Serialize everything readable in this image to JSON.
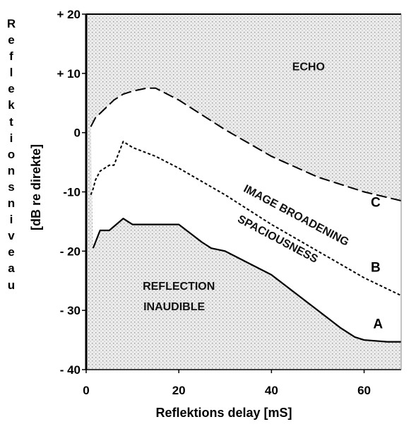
{
  "chart_data": {
    "type": "line",
    "ylabel_outer": "Reflektionsniveau",
    "ylabel_inner": "[dB re direkte]",
    "xlabel": "Reflektions delay [mS]",
    "xlim": [
      0,
      68
    ],
    "ylim": [
      -40,
      20
    ],
    "x_ticks": [
      0,
      20,
      40,
      60
    ],
    "x_tick_labels": [
      "0",
      "20",
      "40",
      "60"
    ],
    "y_ticks": [
      20,
      10,
      0,
      -10,
      -20,
      -30,
      -40
    ],
    "y_tick_labels": [
      "+ 20",
      "+ 10",
      "0",
      "-10",
      "- 20",
      "- 30",
      "- 40"
    ],
    "series": [
      {
        "name": "A",
        "style": "solid",
        "x": [
          1.5,
          2,
          3,
          4.5,
          5,
          6.5,
          8,
          9,
          10,
          15,
          20,
          25,
          27,
          30,
          35,
          40,
          45,
          50,
          55,
          58,
          60,
          65,
          68
        ],
        "y": [
          -19.5,
          -18.5,
          -16.5,
          -16.5,
          -16.5,
          -15.5,
          -14.5,
          -15,
          -15.5,
          -15.5,
          -15.5,
          -18.5,
          -19.5,
          -20,
          -22,
          -24,
          -27,
          -30,
          -33,
          -34.5,
          -35,
          -35.3,
          -35.3
        ]
      },
      {
        "name": "B",
        "style": "dotted",
        "x": [
          1,
          1.5,
          2,
          3,
          4,
          5,
          6,
          7,
          7.5,
          8,
          10,
          15,
          20,
          30,
          40,
          50,
          60,
          68
        ],
        "y": [
          -10.5,
          -9.5,
          -8,
          -6.5,
          -6,
          -5.5,
          -5.5,
          -3.5,
          -2.5,
          -1.5,
          -2.5,
          -4,
          -6,
          -10.5,
          -15.5,
          -20,
          -24.5,
          -27.5
        ]
      },
      {
        "name": "C",
        "style": "dashed",
        "x": [
          1,
          2,
          4,
          6,
          8,
          10,
          13,
          15,
          20,
          30,
          40,
          50,
          60,
          68
        ],
        "y": [
          1,
          2.5,
          4,
          5.5,
          6.5,
          7,
          7.5,
          7.5,
          5.5,
          0.5,
          -4,
          -7.5,
          -10,
          -11.5
        ]
      }
    ],
    "region_labels": [
      {
        "text": "ECHO",
        "x": 48,
        "y": 10.5,
        "rotate": 0
      },
      {
        "text": "IMAGE BROADENING",
        "x": 45,
        "y": -14.5,
        "rotate": 28
      },
      {
        "text": "SPACIOUSNESS",
        "x": 41,
        "y": -18.5,
        "rotate": 28
      },
      {
        "text": "REFLECTION",
        "x": 20,
        "y": -26.5,
        "rotate": 0
      },
      {
        "text": "INAUDIBLE",
        "x": 19,
        "y": -30,
        "rotate": 0
      }
    ],
    "curve_labels": [
      {
        "text": "C",
        "x": 62.5,
        "y": -12.5
      },
      {
        "text": "B",
        "x": 62.5,
        "y": -23.5
      },
      {
        "text": "A",
        "x": 63,
        "y": -33
      }
    ],
    "grid": false
  },
  "colors": {
    "background": "#ffffff",
    "plot_fill": "#ececec",
    "stipple": "#9a9a9a",
    "ink": "#000000"
  }
}
